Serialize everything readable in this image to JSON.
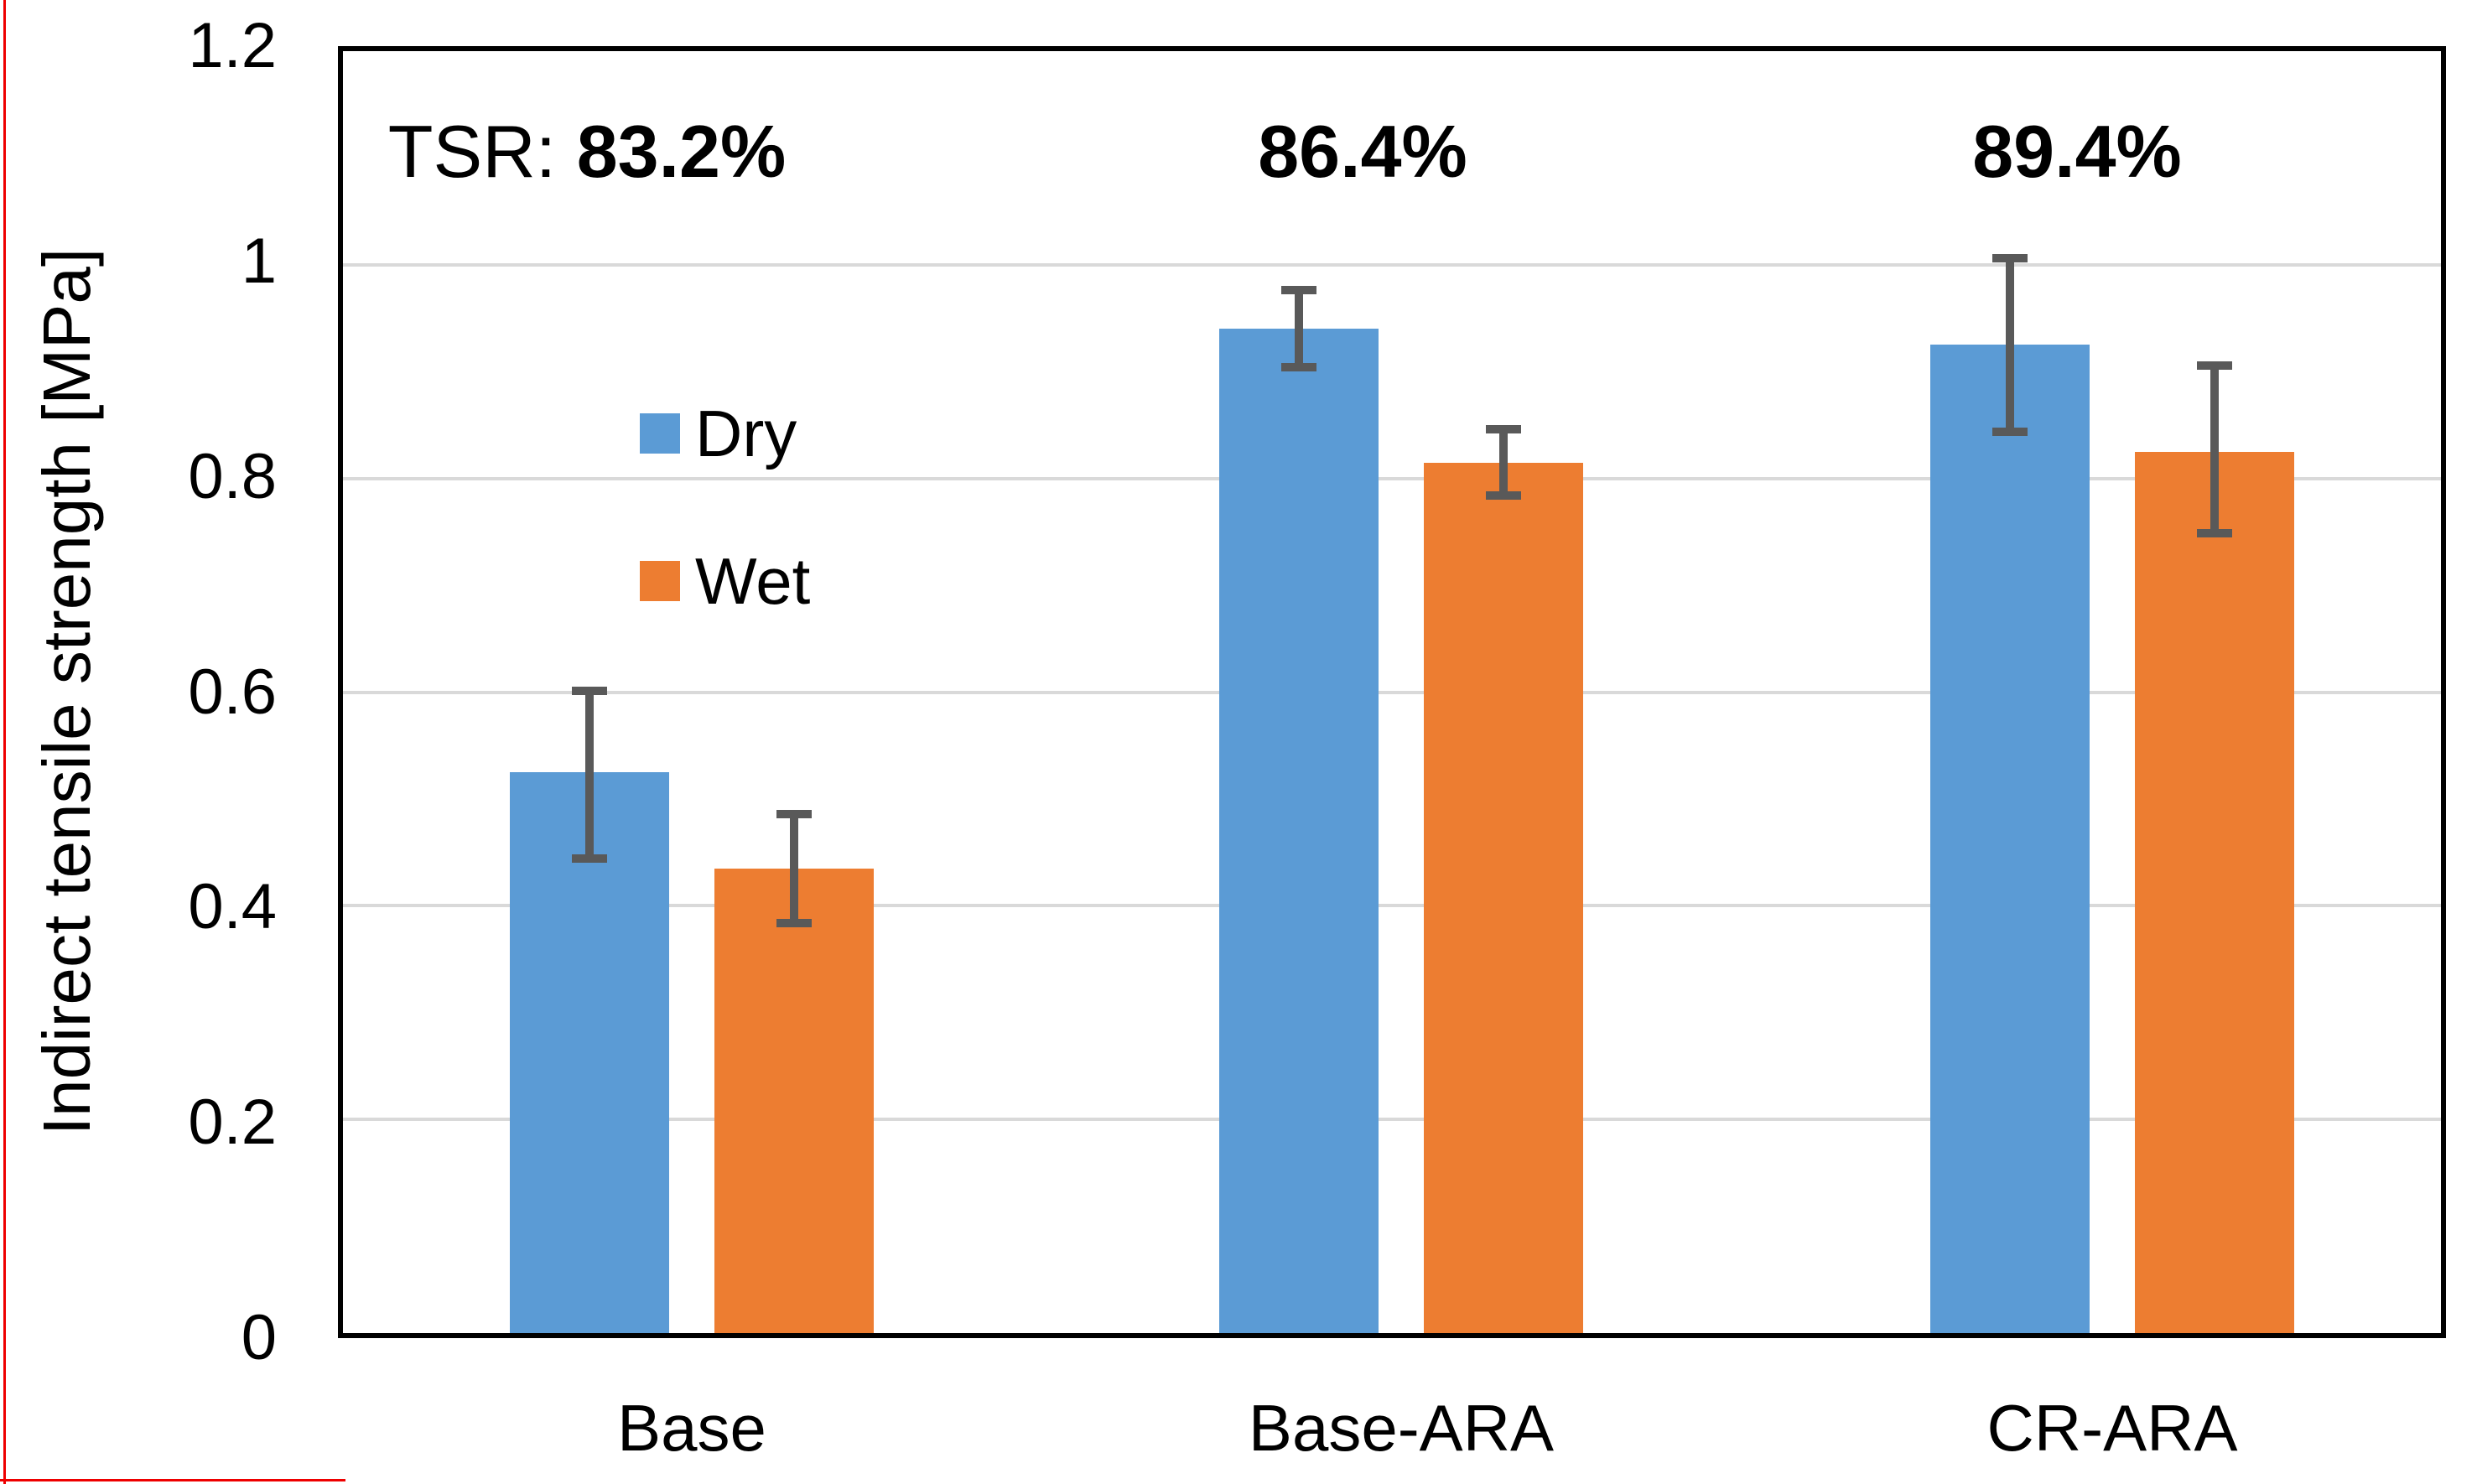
{
  "chart_data": {
    "type": "bar",
    "title": "",
    "xlabel": "",
    "ylabel": "Indirect tensile strength [MPa]",
    "ylim": [
      0,
      1.2
    ],
    "yticks": [
      {
        "value": 0,
        "label": "0"
      },
      {
        "value": 0.2,
        "label": "0.2"
      },
      {
        "value": 0.4,
        "label": "0.4"
      },
      {
        "value": 0.6,
        "label": "0.6"
      },
      {
        "value": 0.8,
        "label": "0.8"
      },
      {
        "value": 1,
        "label": "1"
      },
      {
        "value": 1.2,
        "label": "1.2"
      }
    ],
    "grid": true,
    "legend_position": "inside-upper-left",
    "categories": [
      "Base",
      "Base-ARA",
      "CR-ARA"
    ],
    "series": [
      {
        "name": "Dry",
        "color": "#5B9BD5",
        "values": [
          0.525,
          0.94,
          0.925
        ],
        "error_low": [
          0.44,
          0.9,
          0.84
        ],
        "error_high": [
          0.605,
          0.98,
          1.01
        ]
      },
      {
        "name": "Wet",
        "color": "#ED7D31",
        "values": [
          0.435,
          0.815,
          0.825
        ],
        "error_low": [
          0.38,
          0.78,
          0.745
        ],
        "error_high": [
          0.49,
          0.85,
          0.91
        ]
      }
    ],
    "annotations": [
      {
        "prefix": "TSR: ",
        "value": "83.2%"
      },
      {
        "prefix": "",
        "value": "86.4%"
      },
      {
        "prefix": "",
        "value": "89.4%"
      }
    ]
  },
  "colors": {
    "dry": "#5B9BD5",
    "wet": "#ED7D31",
    "error_bar": "#595959",
    "gridline": "#D9D9D9",
    "axis": "#000000",
    "red_border": "#EE0000"
  }
}
